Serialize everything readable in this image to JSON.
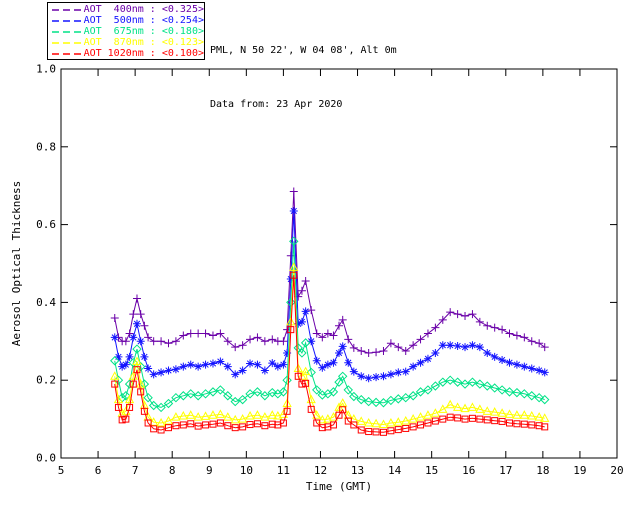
{
  "canvas": {
    "background": "#ffffff",
    "axis_color": "#000000"
  },
  "header": {
    "site_line": "PML, N 50 22', W 04 08', Alt 0m",
    "date_line": "Data from: 23 Apr 2020"
  },
  "legend": {
    "entries": [
      {
        "label": "AOT  400nm : <0.325>"
      },
      {
        "label": "AOT  500nm : <0.254>"
      },
      {
        "label": "AOT  675nm : <0.180>"
      },
      {
        "label": "AOT  870nm : <0.123>"
      },
      {
        "label": "AOT 1020nm : <0.100>"
      }
    ]
  },
  "chart_data": {
    "type": "line",
    "title": "",
    "xlabel": "Time (GMT)",
    "ylabel": "Aerosol Optical Thickness",
    "xlim": [
      5,
      20
    ],
    "ylim": [
      0,
      1.0
    ],
    "xticks": [
      5,
      6,
      7,
      8,
      9,
      10,
      11,
      12,
      13,
      14,
      15,
      16,
      17,
      18,
      19,
      20
    ],
    "yticks": [
      0.0,
      0.2,
      0.4,
      0.6,
      0.8,
      1.0
    ],
    "grid": false,
    "legend_position": "top-left",
    "axis_color": "#000000",
    "x": [
      6.45,
      6.55,
      6.65,
      6.75,
      6.85,
      6.95,
      7.05,
      7.15,
      7.25,
      7.35,
      7.5,
      7.7,
      7.9,
      8.1,
      8.3,
      8.5,
      8.7,
      8.9,
      9.1,
      9.3,
      9.5,
      9.7,
      9.9,
      10.1,
      10.3,
      10.5,
      10.7,
      10.85,
      11.0,
      11.1,
      11.2,
      11.28,
      11.4,
      11.5,
      11.6,
      11.75,
      11.9,
      12.05,
      12.2,
      12.35,
      12.5,
      12.6,
      12.75,
      12.9,
      13.1,
      13.3,
      13.5,
      13.7,
      13.9,
      14.1,
      14.3,
      14.5,
      14.7,
      14.9,
      15.1,
      15.3,
      15.5,
      15.7,
      15.9,
      16.1,
      16.3,
      16.5,
      16.7,
      16.9,
      17.1,
      17.3,
      17.5,
      17.7,
      17.9,
      18.05
    ],
    "series": [
      {
        "name": "AOT 400nm",
        "wavelength_nm": 400,
        "legend_mean": 0.325,
        "color": "#6a00a8",
        "marker": "plus",
        "values": [
          0.36,
          0.31,
          0.3,
          0.3,
          0.32,
          0.37,
          0.41,
          0.37,
          0.34,
          0.31,
          0.3,
          0.3,
          0.295,
          0.3,
          0.315,
          0.32,
          0.32,
          0.32,
          0.315,
          0.32,
          0.3,
          0.285,
          0.29,
          0.305,
          0.31,
          0.3,
          0.305,
          0.3,
          0.3,
          0.33,
          0.52,
          0.685,
          0.415,
          0.43,
          0.455,
          0.38,
          0.32,
          0.31,
          0.32,
          0.315,
          0.34,
          0.355,
          0.305,
          0.283,
          0.275,
          0.27,
          0.272,
          0.275,
          0.295,
          0.285,
          0.275,
          0.29,
          0.305,
          0.32,
          0.335,
          0.355,
          0.375,
          0.37,
          0.365,
          0.37,
          0.35,
          0.34,
          0.335,
          0.33,
          0.32,
          0.315,
          0.31,
          0.3,
          0.295,
          0.285
        ]
      },
      {
        "name": "AOT 500nm",
        "wavelength_nm": 500,
        "legend_mean": 0.254,
        "color": "#1414ff",
        "marker": "asterisk",
        "values": [
          0.31,
          0.26,
          0.235,
          0.24,
          0.26,
          0.31,
          0.345,
          0.3,
          0.26,
          0.23,
          0.215,
          0.22,
          0.225,
          0.228,
          0.235,
          0.24,
          0.235,
          0.24,
          0.243,
          0.248,
          0.235,
          0.215,
          0.225,
          0.243,
          0.24,
          0.225,
          0.244,
          0.235,
          0.24,
          0.27,
          0.46,
          0.635,
          0.345,
          0.35,
          0.377,
          0.3,
          0.25,
          0.232,
          0.24,
          0.245,
          0.27,
          0.287,
          0.245,
          0.222,
          0.21,
          0.205,
          0.208,
          0.21,
          0.215,
          0.22,
          0.222,
          0.235,
          0.245,
          0.255,
          0.27,
          0.29,
          0.29,
          0.288,
          0.285,
          0.29,
          0.285,
          0.27,
          0.26,
          0.252,
          0.245,
          0.24,
          0.235,
          0.23,
          0.225,
          0.22
        ]
      },
      {
        "name": "AOT 675nm",
        "wavelength_nm": 675,
        "legend_mean": 0.18,
        "color": "#00e287",
        "marker": "diamond",
        "values": [
          0.25,
          0.2,
          0.155,
          0.16,
          0.19,
          0.245,
          0.28,
          0.235,
          0.19,
          0.155,
          0.135,
          0.13,
          0.14,
          0.155,
          0.16,
          0.165,
          0.16,
          0.165,
          0.17,
          0.175,
          0.16,
          0.145,
          0.15,
          0.165,
          0.17,
          0.16,
          0.168,
          0.165,
          0.17,
          0.2,
          0.4,
          0.557,
          0.283,
          0.27,
          0.296,
          0.22,
          0.175,
          0.162,
          0.165,
          0.17,
          0.195,
          0.21,
          0.175,
          0.158,
          0.15,
          0.145,
          0.143,
          0.142,
          0.148,
          0.152,
          0.155,
          0.16,
          0.17,
          0.175,
          0.185,
          0.195,
          0.2,
          0.195,
          0.19,
          0.195,
          0.19,
          0.185,
          0.18,
          0.175,
          0.17,
          0.168,
          0.165,
          0.16,
          0.155,
          0.15
        ]
      },
      {
        "name": "AOT 870nm",
        "wavelength_nm": 870,
        "legend_mean": 0.123,
        "color": "#ffff00",
        "marker": "triangle",
        "values": [
          0.21,
          0.15,
          0.115,
          0.12,
          0.15,
          0.21,
          0.248,
          0.19,
          0.135,
          0.105,
          0.092,
          0.09,
          0.095,
          0.105,
          0.108,
          0.11,
          0.105,
          0.107,
          0.11,
          0.112,
          0.105,
          0.098,
          0.1,
          0.108,
          0.11,
          0.105,
          0.11,
          0.108,
          0.112,
          0.14,
          0.35,
          0.49,
          0.23,
          0.21,
          0.222,
          0.15,
          0.11,
          0.098,
          0.1,
          0.105,
          0.13,
          0.141,
          0.11,
          0.1,
          0.094,
          0.09,
          0.088,
          0.086,
          0.09,
          0.092,
          0.095,
          0.1,
          0.105,
          0.11,
          0.115,
          0.125,
          0.137,
          0.13,
          0.127,
          0.13,
          0.125,
          0.12,
          0.118,
          0.115,
          0.112,
          0.11,
          0.11,
          0.108,
          0.105,
          0.102
        ]
      },
      {
        "name": "AOT 1020nm",
        "wavelength_nm": 1020,
        "legend_mean": 0.1,
        "color": "#ff0000",
        "marker": "square",
        "values": [
          0.19,
          0.13,
          0.098,
          0.1,
          0.13,
          0.19,
          0.227,
          0.17,
          0.12,
          0.09,
          0.075,
          0.072,
          0.078,
          0.083,
          0.085,
          0.088,
          0.082,
          0.085,
          0.087,
          0.09,
          0.083,
          0.078,
          0.08,
          0.086,
          0.088,
          0.083,
          0.087,
          0.085,
          0.09,
          0.12,
          0.33,
          0.47,
          0.21,
          0.19,
          0.192,
          0.125,
          0.09,
          0.078,
          0.08,
          0.085,
          0.11,
          0.124,
          0.095,
          0.085,
          0.072,
          0.068,
          0.067,
          0.066,
          0.07,
          0.073,
          0.076,
          0.08,
          0.085,
          0.09,
          0.095,
          0.1,
          0.105,
          0.103,
          0.1,
          0.102,
          0.1,
          0.098,
          0.096,
          0.094,
          0.09,
          0.088,
          0.087,
          0.085,
          0.083,
          0.08
        ]
      }
    ]
  }
}
